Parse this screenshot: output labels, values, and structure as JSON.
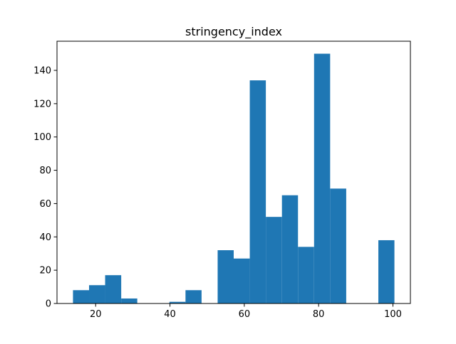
{
  "chart_data": {
    "type": "bar",
    "histogram": true,
    "title": "stringency_index",
    "xlabel": "",
    "ylabel": "",
    "bins": [
      {
        "x0": 13.9,
        "x1": 18.23,
        "count": 8
      },
      {
        "x0": 18.23,
        "x1": 22.55,
        "count": 11
      },
      {
        "x0": 22.55,
        "x1": 26.88,
        "count": 17
      },
      {
        "x0": 26.88,
        "x1": 31.2,
        "count": 3
      },
      {
        "x0": 31.2,
        "x1": 35.53,
        "count": 0
      },
      {
        "x0": 35.53,
        "x1": 39.85,
        "count": 0
      },
      {
        "x0": 39.85,
        "x1": 44.18,
        "count": 1
      },
      {
        "x0": 44.18,
        "x1": 48.5,
        "count": 8
      },
      {
        "x0": 48.5,
        "x1": 52.83,
        "count": 0
      },
      {
        "x0": 52.83,
        "x1": 57.15,
        "count": 32
      },
      {
        "x0": 57.15,
        "x1": 61.48,
        "count": 27
      },
      {
        "x0": 61.48,
        "x1": 65.8,
        "count": 134
      },
      {
        "x0": 65.8,
        "x1": 70.13,
        "count": 52
      },
      {
        "x0": 70.13,
        "x1": 74.45,
        "count": 65
      },
      {
        "x0": 74.45,
        "x1": 78.78,
        "count": 34
      },
      {
        "x0": 78.78,
        "x1": 83.1,
        "count": 150
      },
      {
        "x0": 83.1,
        "x1": 87.43,
        "count": 69
      },
      {
        "x0": 87.43,
        "x1": 91.75,
        "count": 0
      },
      {
        "x0": 91.75,
        "x1": 96.08,
        "count": 0
      },
      {
        "x0": 96.08,
        "x1": 100.4,
        "count": 38
      }
    ],
    "xlim": [
      9.6,
      104.7
    ],
    "ylim": [
      0,
      157.5
    ],
    "xticks": [
      20,
      40,
      60,
      80,
      100
    ],
    "yticks": [
      0,
      20,
      40,
      60,
      80,
      100,
      120,
      140
    ],
    "grid": false,
    "colors": {
      "bar": "#1f77b4",
      "axis": "#000000",
      "background": "#ffffff"
    }
  }
}
